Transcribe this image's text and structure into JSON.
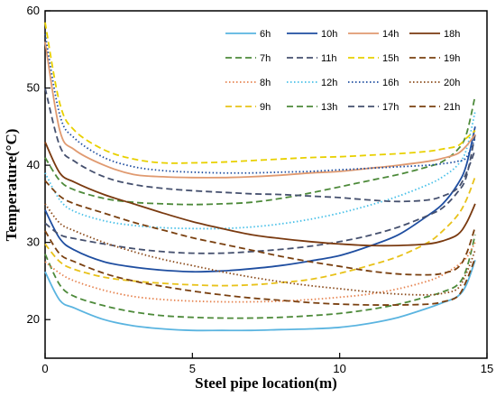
{
  "chart_data": {
    "type": "line",
    "title": "",
    "xlabel": "Steel pipe location(m)",
    "ylabel": "Temperature(°C)",
    "xlim": [
      0,
      15
    ],
    "ylim": [
      15,
      60
    ],
    "xticks": [
      0,
      5,
      10,
      15
    ],
    "yticks": [
      20,
      30,
      40,
      50,
      60
    ],
    "grid": false,
    "legend_position": "top-right",
    "legend_columns": 4,
    "x": [
      0,
      0.5,
      1,
      2,
      3,
      4,
      5,
      6,
      7,
      8,
      9,
      10,
      11,
      12,
      13,
      13.5,
      14,
      14.3,
      14.6
    ],
    "series": [
      {
        "name": "6h",
        "color": "#5ab4e0",
        "dash": "solid",
        "values": [
          26.2,
          22.5,
          21.5,
          20.0,
          19.2,
          18.8,
          18.6,
          18.6,
          18.6,
          18.7,
          18.8,
          19.0,
          19.5,
          20.3,
          21.5,
          22.2,
          23.0,
          24.5,
          27.7
        ]
      },
      {
        "name": "7h",
        "color": "#4d8a3a",
        "dash": "dashed",
        "values": [
          28.5,
          24.5,
          23.0,
          21.8,
          21.0,
          20.5,
          20.3,
          20.2,
          20.2,
          20.3,
          20.5,
          20.8,
          21.3,
          22.0,
          23.0,
          23.6,
          24.5,
          26.5,
          31.0
        ]
      },
      {
        "name": "8h",
        "color": "#e6834f",
        "dash": "dotted",
        "values": [
          27.5,
          26.0,
          25.0,
          23.8,
          23.0,
          22.6,
          22.4,
          22.3,
          22.3,
          22.4,
          22.6,
          22.9,
          23.3,
          24.0,
          25.0,
          25.8,
          27.0,
          28.0,
          30.0
        ]
      },
      {
        "name": "9h",
        "color": "#e8c21a",
        "dash": "dashed",
        "values": [
          29.8,
          27.5,
          26.5,
          25.5,
          25.0,
          24.7,
          24.5,
          24.4,
          24.5,
          24.8,
          25.2,
          26.0,
          27.0,
          28.2,
          30.0,
          31.5,
          33.5,
          35.5,
          38.5
        ]
      },
      {
        "name": "10h",
        "color": "#1f4ea0",
        "dash": "solid",
        "values": [
          34.2,
          30.5,
          29.0,
          27.5,
          26.8,
          26.4,
          26.2,
          26.3,
          26.6,
          27.0,
          27.6,
          28.3,
          29.5,
          31.0,
          33.5,
          35.0,
          37.5,
          40.0,
          45.0
        ]
      },
      {
        "name": "11h",
        "color": "#45506e",
        "dash": "dashed",
        "values": [
          32.5,
          31.0,
          30.5,
          29.8,
          29.2,
          28.8,
          28.6,
          28.6,
          28.8,
          29.1,
          29.5,
          30.1,
          30.9,
          32.0,
          33.5,
          34.5,
          36.5,
          38.5,
          44.0
        ]
      },
      {
        "name": "12h",
        "color": "#48c0e8",
        "dash": "dotted",
        "values": [
          39.0,
          35.5,
          34.0,
          32.8,
          32.2,
          31.9,
          31.8,
          31.8,
          32.0,
          32.4,
          33.0,
          33.8,
          34.8,
          36.0,
          37.5,
          38.5,
          40.0,
          42.0,
          47.0
        ]
      },
      {
        "name": "13h",
        "color": "#4d8a3a",
        "dash": "dashed",
        "values": [
          41.0,
          38.0,
          36.8,
          35.7,
          35.2,
          35.0,
          34.9,
          35.0,
          35.2,
          35.7,
          36.4,
          37.2,
          38.0,
          38.8,
          39.8,
          40.5,
          42.0,
          44.0,
          49.0
        ]
      },
      {
        "name": "14h",
        "color": "#e09a70",
        "dash": "solid",
        "values": [
          56.0,
          44.5,
          42.0,
          40.0,
          38.8,
          38.5,
          38.4,
          38.4,
          38.5,
          38.7,
          39.0,
          39.2,
          39.6,
          40.0,
          40.5,
          40.9,
          41.5,
          42.5,
          44.0
        ]
      },
      {
        "name": "15h",
        "color": "#e8d000",
        "dash": "dashed",
        "values": [
          58.5,
          48.0,
          44.5,
          42.0,
          40.8,
          40.3,
          40.3,
          40.4,
          40.6,
          40.8,
          41.0,
          41.1,
          41.3,
          41.5,
          41.8,
          42.1,
          42.5,
          43.5,
          44.5
        ]
      },
      {
        "name": "16h",
        "color": "#1f4ea0",
        "dash": "dotted",
        "values": [
          57.0,
          46.5,
          43.5,
          41.0,
          39.8,
          39.3,
          39.1,
          39.0,
          39.0,
          39.1,
          39.2,
          39.4,
          39.6,
          39.8,
          40.0,
          40.2,
          40.5,
          41.0,
          43.5
        ]
      },
      {
        "name": "17h",
        "color": "#45506e",
        "dash": "dashed",
        "values": [
          50.0,
          42.5,
          40.5,
          38.5,
          37.5,
          37.0,
          36.7,
          36.5,
          36.3,
          36.2,
          36.0,
          35.8,
          35.5,
          35.3,
          35.5,
          36.0,
          37.0,
          39.0,
          42.0
        ]
      },
      {
        "name": "18h",
        "color": "#7a3a10",
        "dash": "solid",
        "values": [
          43.0,
          39.0,
          37.8,
          36.2,
          35.0,
          33.8,
          32.7,
          31.8,
          31.0,
          30.5,
          30.1,
          29.8,
          29.6,
          29.6,
          29.8,
          30.2,
          31.0,
          32.5,
          35.0
        ]
      },
      {
        "name": "19h",
        "color": "#7a4010",
        "dash": "dashed",
        "values": [
          38.0,
          36.0,
          35.0,
          33.8,
          32.6,
          31.6,
          30.6,
          29.8,
          29.0,
          28.2,
          27.5,
          26.9,
          26.3,
          25.9,
          25.8,
          26.0,
          26.7,
          28.5,
          32.0
        ]
      },
      {
        "name": "20h",
        "color": "#8a4a1a",
        "dash": "dotted",
        "values": [
          35.0,
          32.5,
          31.5,
          30.0,
          28.8,
          27.8,
          27.0,
          26.2,
          25.5,
          24.9,
          24.4,
          24.0,
          23.6,
          23.3,
          23.2,
          23.4,
          24.0,
          26.0,
          29.0
        ]
      },
      {
        "name": "21h",
        "color": "#7a4010",
        "dash": "dashed",
        "values": [
          31.5,
          28.5,
          27.5,
          26.0,
          25.0,
          24.3,
          23.7,
          23.2,
          22.8,
          22.5,
          22.2,
          22.0,
          21.9,
          21.9,
          22.0,
          22.3,
          23.0,
          25.0,
          28.0
        ]
      }
    ]
  }
}
